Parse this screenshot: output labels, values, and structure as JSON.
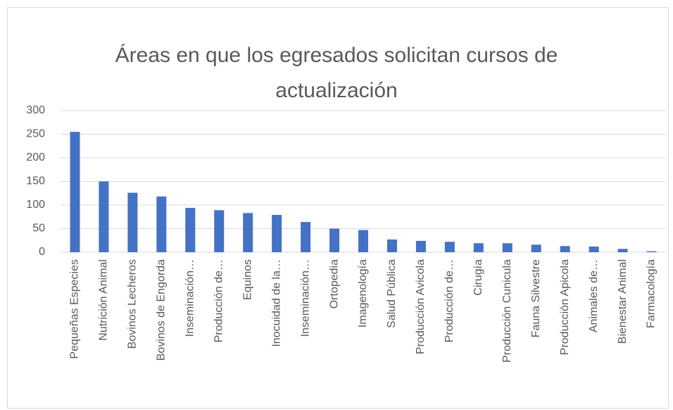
{
  "chart_data": {
    "type": "bar",
    "title": [
      "Áreas en que los egresados solicitan cursos de",
      "actualización"
    ],
    "categories": [
      "Pequeñas Especies",
      "Nutrición Animal",
      "Bovinos Lecheros",
      "Bovinos de Engorda",
      "Inseminación…",
      "Producción de…",
      "Equinos",
      "Inocuidad de la…",
      "Inseminación…",
      "Ortopedia",
      "Imagenología",
      "Salud Pública",
      "Producción Avicola",
      "Producción de…",
      "Cirugía",
      "Producción Cunicula",
      "Fauna Silvestre",
      "Producción Apicola",
      "Animales de…",
      "Bienestar Animal",
      "Farmacología"
    ],
    "values": [
      255,
      150,
      126,
      118,
      94,
      89,
      83,
      79,
      64,
      50,
      47,
      27,
      24,
      22,
      19,
      19,
      16,
      13,
      12,
      7,
      2
    ],
    "color": "#4472c4",
    "ylim": [
      0,
      300
    ],
    "yticks": [
      0,
      50,
      100,
      150,
      200,
      250,
      300
    ],
    "grid": true
  }
}
